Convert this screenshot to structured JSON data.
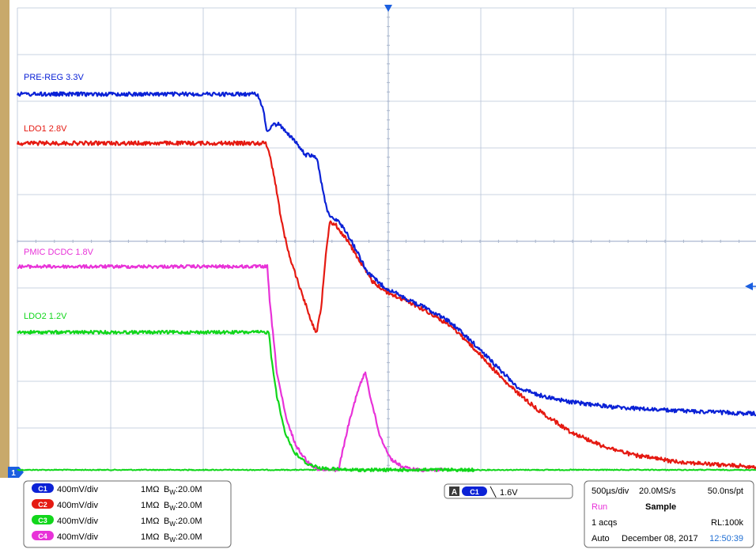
{
  "colors": {
    "bezel": "#c8a96b",
    "screen_bg": "#ffffff",
    "grid": "#b8c4d8",
    "grid_dots": "#aab6cc",
    "panel_bg": "#ffffff",
    "panel_border": "#6b6b6b",
    "c1": "#0b22d6",
    "c2": "#e51a12",
    "c3": "#11d61b",
    "c4": "#e832d8",
    "ref_marker": "#1b5fe0",
    "trigger_marker": "#1b5fe0",
    "run_text": "#e832d8",
    "time_text": "#1f6fd4"
  },
  "labels": {
    "pre_reg": "PRE-REG 3.3V",
    "ldo1": "LDO1 2.8V",
    "pmic": "PMIC DCDC 1.8V",
    "ldo2": "LDO2 1.2V"
  },
  "channels": [
    {
      "id": "C1",
      "scale": "400mV/div",
      "impedance": "1MΩ",
      "bw": "B",
      "bw_sub": "W",
      "bw_val": ":20.0M"
    },
    {
      "id": "C2",
      "scale": "400mV/div",
      "impedance": "1MΩ",
      "bw": "B",
      "bw_sub": "W",
      "bw_val": ":20.0M"
    },
    {
      "id": "C3",
      "scale": "400mV/div",
      "impedance": "1MΩ",
      "bw": "B",
      "bw_sub": "W",
      "bw_val": ":20.0M"
    },
    {
      "id": "C4",
      "scale": "400mV/div",
      "impedance": "1MΩ",
      "bw": "B",
      "bw_sub": "W",
      "bw_val": ":20.0M"
    }
  ],
  "trigger": {
    "mode_badge": "A",
    "source": "C1",
    "slope_symbol": "╲",
    "level": "1.6V"
  },
  "acquisition": {
    "timebase": "500µs/div",
    "sample_rate": "20.0MS/s",
    "resolution": "50.0ns/pt",
    "run_state": "Run",
    "sample_mode": "Sample",
    "acqs": "1 acqs",
    "record_length": "RL:100k",
    "trigger_mode": "Auto",
    "date": "December 08, 2017",
    "time": "12:50:39"
  },
  "ground_marker": "1"
}
